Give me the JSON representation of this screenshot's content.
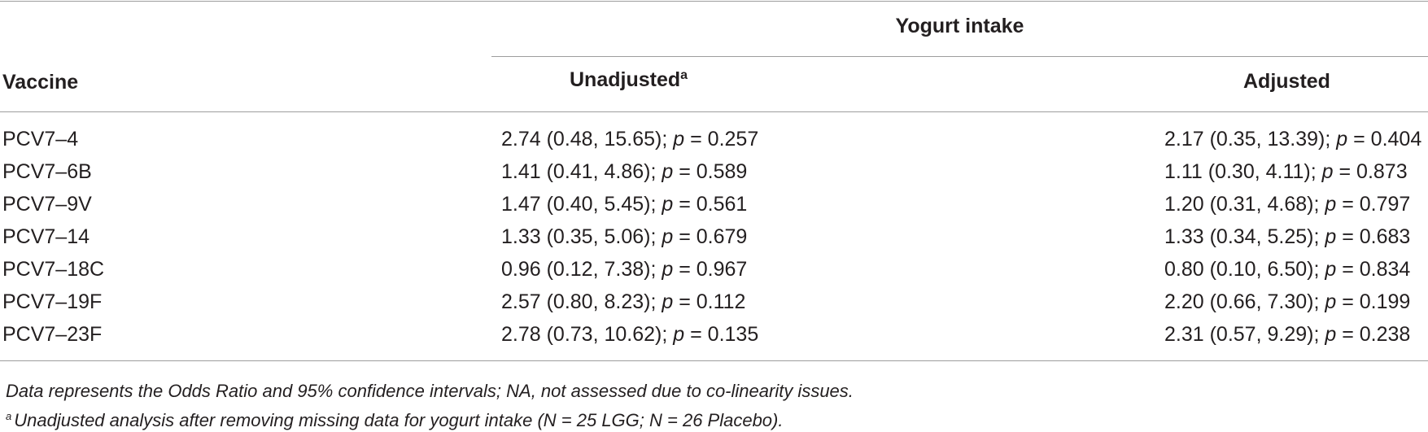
{
  "table": {
    "group_header": "Yogurt intake",
    "col_vaccine": "Vaccine",
    "col_unadjusted": "Unadjusted",
    "col_unadjusted_sup": "a",
    "col_adjusted": "Adjusted",
    "p_label": "p",
    "rows": [
      {
        "vaccine": "PCV7–4",
        "unadj_or": "2.74 (0.48, 15.65); ",
        "unadj_p": " = 0.257",
        "adj_or": "2.17 (0.35, 13.39); ",
        "adj_p": " = 0.404"
      },
      {
        "vaccine": "PCV7–6B",
        "unadj_or": "1.41 (0.41, 4.86); ",
        "unadj_p": " = 0.589",
        "adj_or": "1.11 (0.30, 4.11); ",
        "adj_p": " = 0.873"
      },
      {
        "vaccine": "PCV7–9V",
        "unadj_or": "1.47 (0.40, 5.45); ",
        "unadj_p": " = 0.561",
        "adj_or": "1.20 (0.31, 4.68); ",
        "adj_p": " = 0.797"
      },
      {
        "vaccine": "PCV7–14",
        "unadj_or": "1.33 (0.35, 5.06); ",
        "unadj_p": " = 0.679",
        "adj_or": "1.33 (0.34, 5.25); ",
        "adj_p": " = 0.683"
      },
      {
        "vaccine": "PCV7–18C",
        "unadj_or": "0.96 (0.12, 7.38); ",
        "unadj_p": " = 0.967",
        "adj_or": "0.80 (0.10, 6.50); ",
        "adj_p": " = 0.834"
      },
      {
        "vaccine": "PCV7–19F",
        "unadj_or": "2.57 (0.80, 8.23); ",
        "unadj_p": " = 0.112",
        "adj_or": "2.20 (0.66, 7.30); ",
        "adj_p": " = 0.199"
      },
      {
        "vaccine": "PCV7–23F",
        "unadj_or": "2.78 (0.73, 10.62); ",
        "unadj_p": " = 0.135",
        "adj_or": "2.31 (0.57, 9.29); ",
        "adj_p": " = 0.238"
      }
    ]
  },
  "footnotes": {
    "note1": "Data represents the Odds Ratio and 95% confidence intervals; NA, not assessed due to co-linearity issues.",
    "note2_marker": "a",
    "note2": "Unadjusted analysis after removing missing data for yogurt intake (N = 25 LGG; N = 26 Placebo)."
  },
  "colors": {
    "text": "#231f20",
    "rule": "#9d9d9d",
    "background": "#ffffff"
  }
}
